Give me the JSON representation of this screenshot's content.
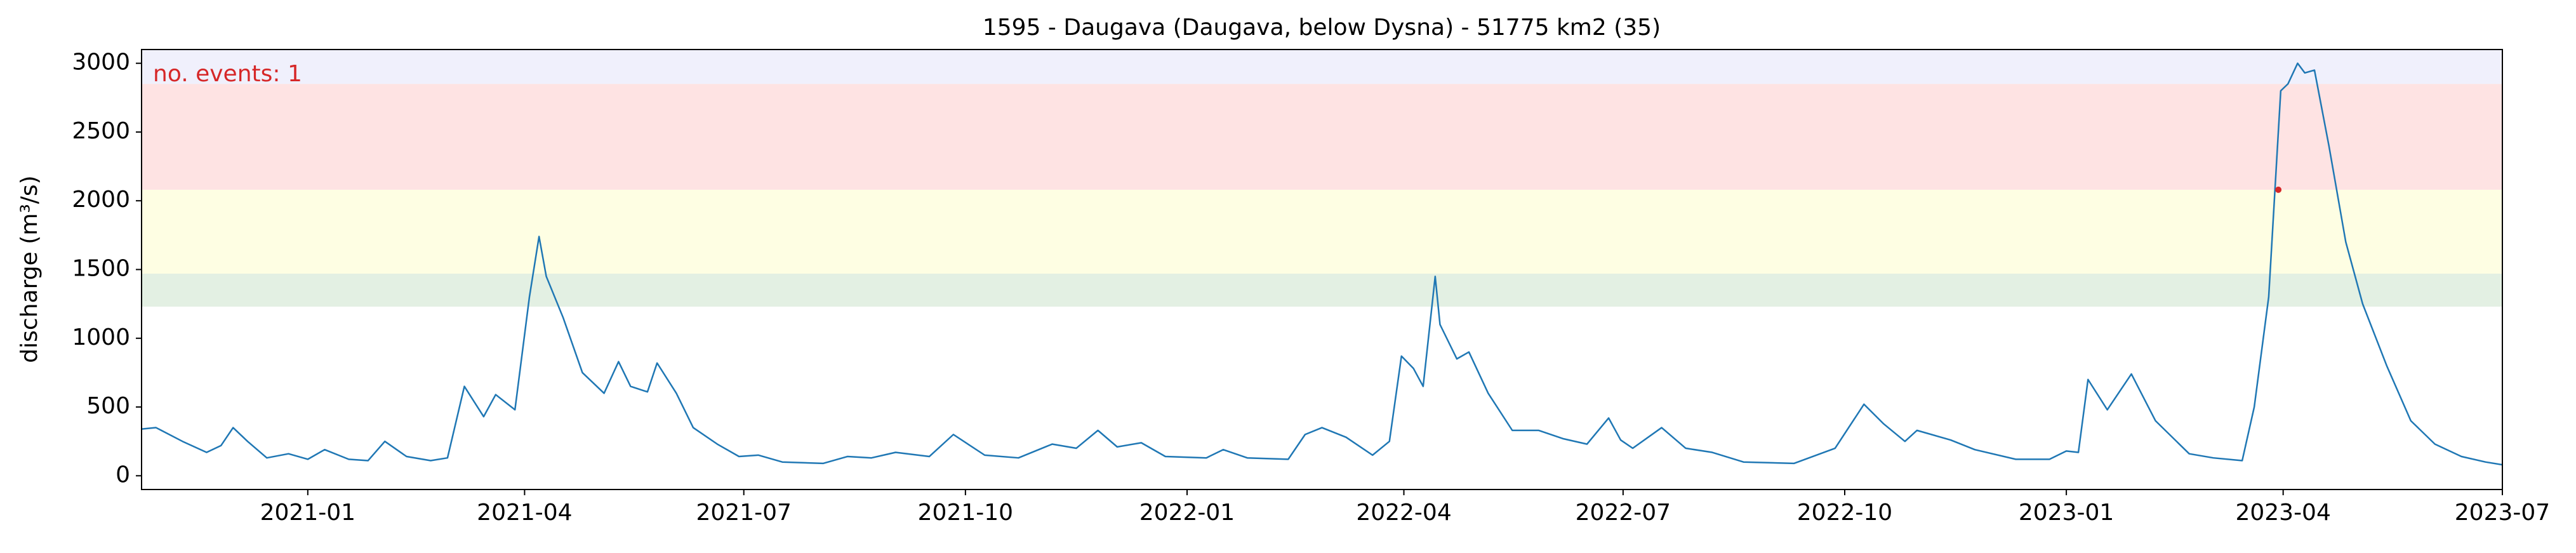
{
  "chart_data": {
    "type": "line",
    "title": "1595 - Daugava (Daugava, below Dysna) - 51775 km2 (35)",
    "y_label": "discharge (m³/s)",
    "annotation": "no. events: 1",
    "annotation_color": "#d62728",
    "xlim": [
      "2020-10-24",
      "2023-07"
    ],
    "xticks": [
      "2021-01",
      "2021-04",
      "2021-07",
      "2021-10",
      "2022-01",
      "2022-04",
      "2022-07",
      "2022-10",
      "2023-01",
      "2023-04",
      "2023-07"
    ],
    "ylim": [
      -100,
      3100
    ],
    "yticks": [
      0,
      500,
      1000,
      1500,
      2000,
      2500,
      3000
    ],
    "bands": [
      {
        "from": 1230,
        "to": 1470,
        "color": "#e3f0e3"
      },
      {
        "from": 1470,
        "to": 2080,
        "color": "#fefee3"
      },
      {
        "from": 2080,
        "to": 2850,
        "color": "#fee3e3"
      },
      {
        "from": 2850,
        "to": 3100,
        "color": "#f0f0fc"
      }
    ],
    "x": [
      "2020-10-24",
      "2020-10-30",
      "2020-11-10",
      "2020-11-20",
      "2020-11-26",
      "2020-12-01",
      "2020-12-07",
      "2020-12-15",
      "2020-12-24",
      "2021-01-01",
      "2021-01-08",
      "2021-01-18",
      "2021-01-26",
      "2021-02-02",
      "2021-02-11",
      "2021-02-21",
      "2021-02-28",
      "2021-03-07",
      "2021-03-15",
      "2021-03-20",
      "2021-03-28",
      "2021-04-03",
      "2021-04-07",
      "2021-04-10",
      "2021-04-17",
      "2021-04-25",
      "2021-05-04",
      "2021-05-10",
      "2021-05-15",
      "2021-05-22",
      "2021-05-26",
      "2021-06-03",
      "2021-06-10",
      "2021-06-20",
      "2021-06-29",
      "2021-07-07",
      "2021-07-17",
      "2021-08-03",
      "2021-08-13",
      "2021-08-23",
      "2021-09-02",
      "2021-09-16",
      "2021-09-26",
      "2021-10-09",
      "2021-10-23",
      "2021-11-06",
      "2021-11-16",
      "2021-11-25",
      "2021-12-03",
      "2021-12-13",
      "2021-12-23",
      "2022-01-09",
      "2022-01-16",
      "2022-01-26",
      "2022-02-12",
      "2022-02-19",
      "2022-02-26",
      "2022-03-08",
      "2022-03-19",
      "2022-03-26",
      "2022-03-31",
      "2022-04-05",
      "2022-04-09",
      "2022-04-14",
      "2022-04-16",
      "2022-04-23",
      "2022-04-28",
      "2022-05-06",
      "2022-05-16",
      "2022-05-27",
      "2022-06-06",
      "2022-06-16",
      "2022-06-25",
      "2022-06-30",
      "2022-07-05",
      "2022-07-17",
      "2022-07-27",
      "2022-08-07",
      "2022-08-20",
      "2022-09-10",
      "2022-09-27",
      "2022-10-09",
      "2022-10-17",
      "2022-10-26",
      "2022-10-31",
      "2022-11-14",
      "2022-11-24",
      "2022-12-11",
      "2022-12-25",
      "2023-01-01",
      "2023-01-06",
      "2023-01-10",
      "2023-01-18",
      "2023-01-28",
      "2023-02-07",
      "2023-02-21",
      "2023-03-03",
      "2023-03-15",
      "2023-03-20",
      "2023-03-26",
      "2023-03-31",
      "2023-04-03",
      "2023-04-07",
      "2023-04-10",
      "2023-04-14",
      "2023-04-20",
      "2023-04-27",
      "2023-05-04",
      "2023-05-14",
      "2023-05-24",
      "2023-06-03",
      "2023-06-14",
      "2023-06-24",
      "2023-07-01"
    ],
    "series": [
      {
        "color": "#1f77b4",
        "values": [
          340,
          350,
          250,
          170,
          220,
          350,
          250,
          130,
          160,
          120,
          190,
          120,
          110,
          250,
          140,
          110,
          130,
          650,
          430,
          590,
          480,
          1300,
          1740,
          1450,
          1150,
          750,
          600,
          830,
          650,
          610,
          820,
          600,
          350,
          230,
          140,
          150,
          100,
          90,
          140,
          130,
          170,
          140,
          300,
          150,
          130,
          230,
          200,
          330,
          210,
          240,
          140,
          130,
          190,
          130,
          120,
          300,
          350,
          280,
          150,
          250,
          870,
          780,
          650,
          1450,
          1100,
          850,
          900,
          600,
          330,
          330,
          270,
          230,
          420,
          260,
          200,
          350,
          200,
          170,
          100,
          90,
          200,
          520,
          380,
          250,
          330,
          260,
          190,
          120,
          120,
          180,
          170,
          700,
          480,
          740,
          400,
          160,
          130,
          110,
          500,
          1300,
          2800,
          2850,
          3000,
          2930,
          2950,
          2400,
          1700,
          1250,
          800,
          400,
          230,
          140,
          100,
          80
        ]
      }
    ],
    "events": {
      "x": [
        "2023-03-30"
      ],
      "values": [
        2080
      ],
      "color": "#d62728"
    }
  }
}
